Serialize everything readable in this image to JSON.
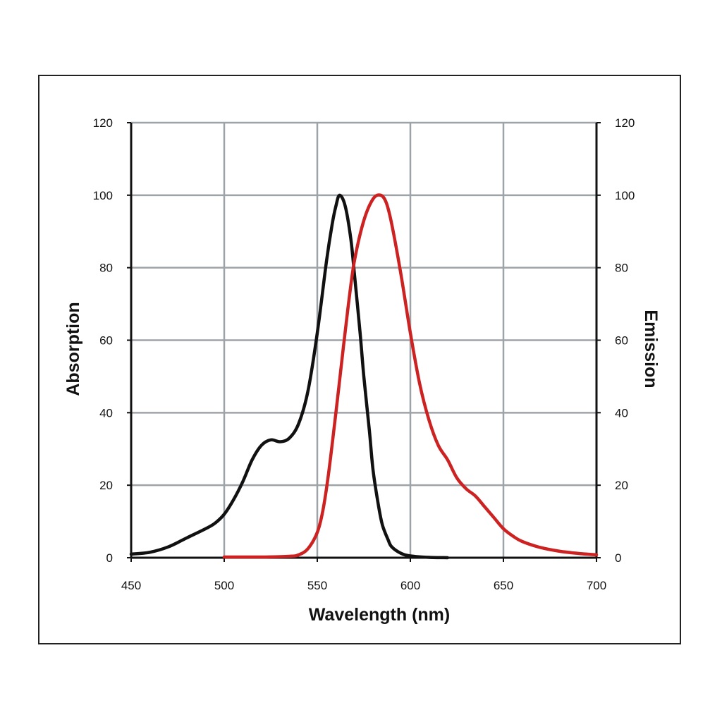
{
  "chart_data": {
    "type": "line",
    "title": "",
    "xlabel": "Wavelength (nm)",
    "ylabel": "Absorption",
    "ylabel_right": "Emission",
    "xlim": [
      450,
      700
    ],
    "ylim": [
      0,
      120
    ],
    "ylim_right": [
      0,
      120
    ],
    "x_ticks": [
      "450",
      "500",
      "550",
      "600",
      "650",
      "700"
    ],
    "y_ticks": [
      "0",
      "20",
      "40",
      "60",
      "80",
      "100",
      "120"
    ],
    "y_ticks_right": [
      "0",
      "20",
      "40",
      "60",
      "80",
      "100",
      "120"
    ],
    "grid": true,
    "legend": "none",
    "series": [
      {
        "axis": "left",
        "color": "#111111",
        "points": [
          [
            450,
            1
          ],
          [
            460,
            1.5
          ],
          [
            470,
            3
          ],
          [
            480,
            5.5
          ],
          [
            490,
            8
          ],
          [
            495,
            9.5
          ],
          [
            500,
            12
          ],
          [
            505,
            16
          ],
          [
            510,
            21
          ],
          [
            515,
            27
          ],
          [
            520,
            31
          ],
          [
            525,
            32.5
          ],
          [
            530,
            32
          ],
          [
            535,
            33
          ],
          [
            540,
            37
          ],
          [
            545,
            46
          ],
          [
            550,
            62
          ],
          [
            555,
            82
          ],
          [
            558,
            92
          ],
          [
            560,
            97
          ],
          [
            562,
            100
          ],
          [
            565,
            97
          ],
          [
            568,
            88
          ],
          [
            570,
            78
          ],
          [
            573,
            62
          ],
          [
            575,
            50
          ],
          [
            578,
            35
          ],
          [
            580,
            24
          ],
          [
            583,
            14
          ],
          [
            585,
            9
          ],
          [
            588,
            5
          ],
          [
            590,
            3
          ],
          [
            595,
            1.2
          ],
          [
            600,
            0.5
          ],
          [
            610,
            0.1
          ],
          [
            620,
            0
          ]
        ]
      },
      {
        "axis": "right",
        "color": "#cc2222",
        "points": [
          [
            500,
            0.2
          ],
          [
            520,
            0.2
          ],
          [
            535,
            0.4
          ],
          [
            540,
            0.8
          ],
          [
            545,
            2.5
          ],
          [
            550,
            7
          ],
          [
            553,
            13
          ],
          [
            556,
            23
          ],
          [
            560,
            40
          ],
          [
            564,
            58
          ],
          [
            567,
            71
          ],
          [
            570,
            82
          ],
          [
            575,
            93
          ],
          [
            580,
            99
          ],
          [
            584,
            100
          ],
          [
            587,
            98
          ],
          [
            590,
            92
          ],
          [
            595,
            78
          ],
          [
            600,
            62
          ],
          [
            605,
            48
          ],
          [
            610,
            38
          ],
          [
            615,
            31
          ],
          [
            620,
            27
          ],
          [
            625,
            22
          ],
          [
            630,
            19
          ],
          [
            635,
            17
          ],
          [
            640,
            14
          ],
          [
            645,
            11
          ],
          [
            650,
            8
          ],
          [
            655,
            6
          ],
          [
            660,
            4.5
          ],
          [
            670,
            2.8
          ],
          [
            680,
            1.8
          ],
          [
            690,
            1.2
          ],
          [
            700,
            0.8
          ]
        ]
      }
    ]
  }
}
